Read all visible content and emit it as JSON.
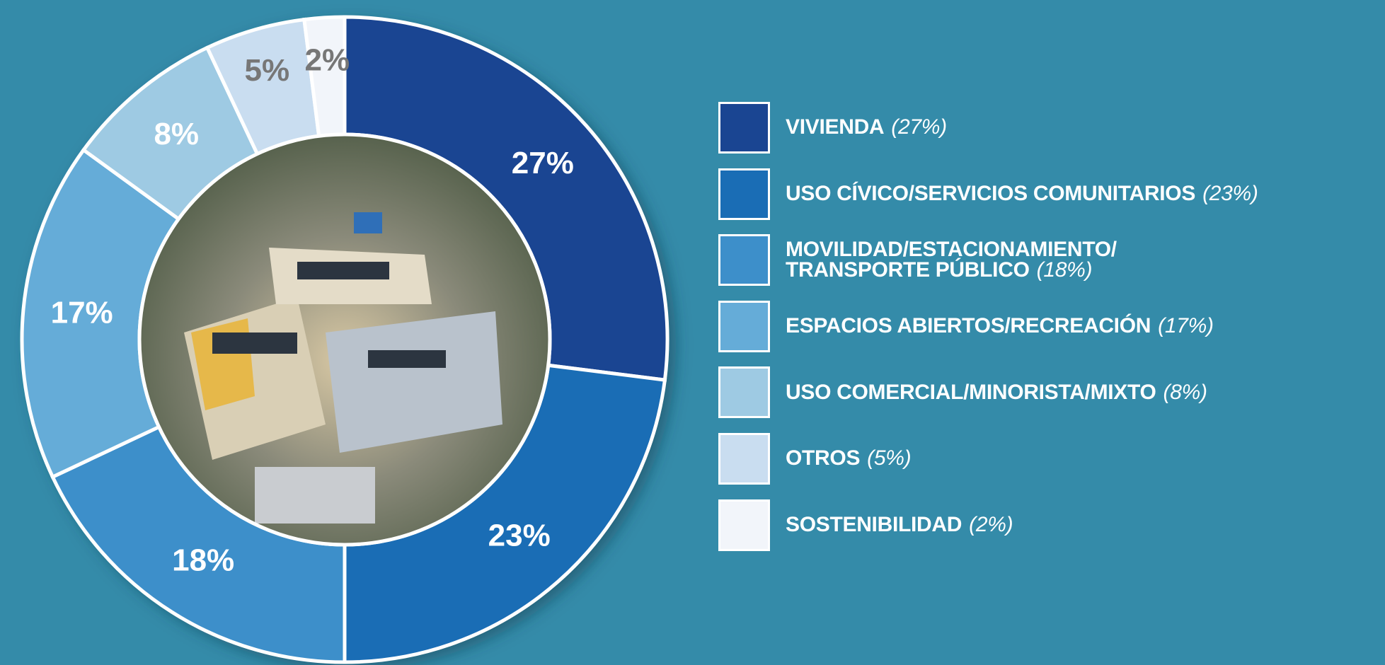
{
  "chart_data": {
    "type": "donut",
    "categories": [
      "VIVIENDA",
      "USO CÍVICO/SERVICIOS COMUNITARIOS",
      "MOVILIDAD/ESTACIONAMIENTO/\nTRANSPORTE PÚBLICO",
      "ESPACIOS ABIERTOS/RECREACIÓN",
      "USO COMERCIAL/MINORISTA/MIXTO",
      "OTROS",
      "SOSTENIBILIDAD"
    ],
    "values": [
      27,
      23,
      18,
      17,
      8,
      5,
      2
    ],
    "value_labels": [
      "27%",
      "23%",
      "18%",
      "17%",
      "8%",
      "5%",
      "2%"
    ],
    "legend_value_labels": [
      "(27%)",
      "(23%)",
      "(18%)",
      "(17%)",
      "(8%)",
      "(5%)",
      "(2%)"
    ],
    "colors": [
      "#1a4592",
      "#1a6db5",
      "#3d8fca",
      "#65acd8",
      "#9ecae3",
      "#c9ddf0",
      "#f2f5fa"
    ],
    "label_colors": [
      "#ffffff",
      "#ffffff",
      "#ffffff",
      "#ffffff",
      "#ffffff",
      "#777777",
      "#777777"
    ],
    "legend": "right"
  }
}
